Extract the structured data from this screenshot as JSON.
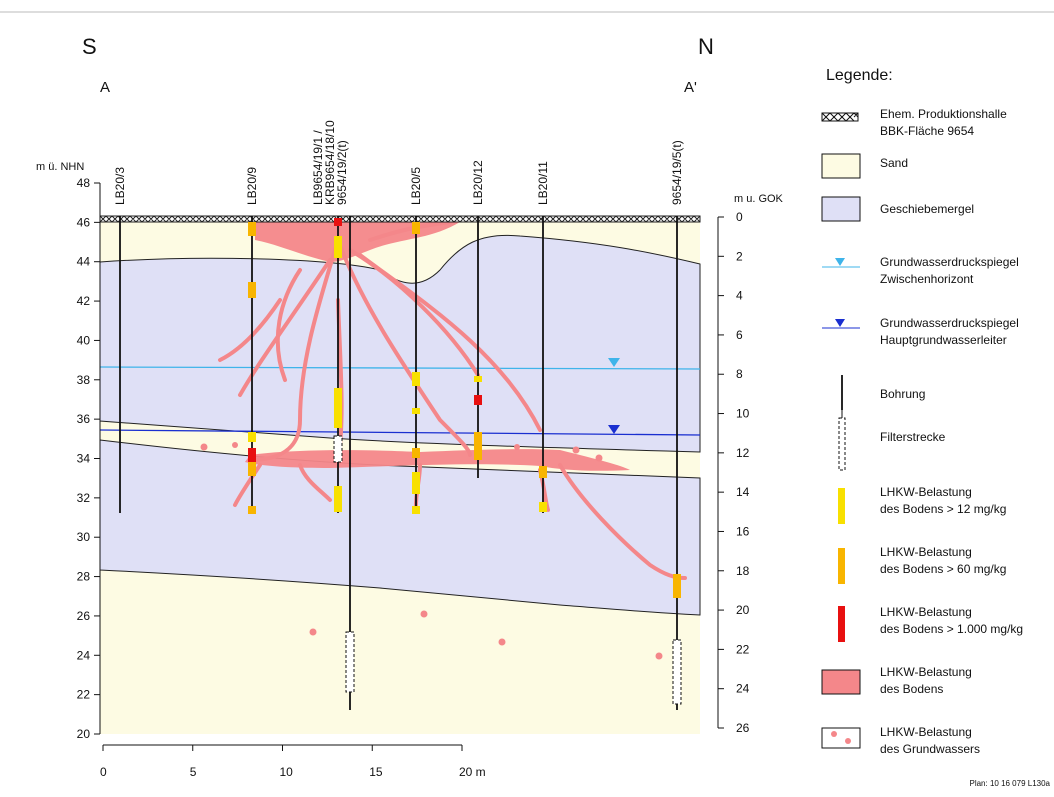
{
  "compass": {
    "left": "S",
    "right": "N"
  },
  "section": {
    "left": "A",
    "right": "A'"
  },
  "left_axis": {
    "title": "m ü. NHN",
    "ticks": [
      "48",
      "46",
      "44",
      "42",
      "40",
      "38",
      "36",
      "34",
      "32",
      "30",
      "28",
      "26",
      "24",
      "22",
      "20"
    ]
  },
  "right_axis": {
    "title": "m u. GOK",
    "ticks": [
      "0",
      "2",
      "4",
      "6",
      "8",
      "10",
      "12",
      "14",
      "16",
      "18",
      "20",
      "22",
      "24",
      "26"
    ]
  },
  "x_axis": {
    "ticks": [
      "0",
      "5",
      "10",
      "15",
      "20 m"
    ]
  },
  "boreholes": [
    {
      "lines": [
        "LB20/3"
      ]
    },
    {
      "lines": [
        "LB20/9"
      ]
    },
    {
      "lines": [
        "LB9654/19/1 /",
        "KRB9654/18/10",
        "9654/19/2(t)"
      ]
    },
    {
      "lines": [
        "LB20/5"
      ]
    },
    {
      "lines": [
        "LB20/12"
      ]
    },
    {
      "lines": [
        "LB20/11"
      ]
    },
    {
      "lines": [
        "9654/19/5(t)"
      ]
    }
  ],
  "legend": {
    "title": "Legende:",
    "items": [
      {
        "lines": [
          "Ehem. Produktionshalle",
          "BBK-Fläche 9654"
        ]
      },
      {
        "lines": [
          "Sand"
        ]
      },
      {
        "lines": [
          "Geschiebemergel"
        ]
      },
      {
        "lines": [
          "Grundwasserdruckspiegel",
          "Zwischenhorizont"
        ]
      },
      {
        "lines": [
          "Grundwasserdruckspiegel",
          "Hauptgrundwasserleiter"
        ]
      },
      {
        "lines": [
          "Bohrung"
        ]
      },
      {
        "lines": [
          "Filterstrecke"
        ]
      },
      {
        "lines": [
          "LHKW-Belastung",
          "des Bodens > 12 mg/kg"
        ]
      },
      {
        "lines": [
          "LHKW-Belastung",
          "des Bodens > 60 mg/kg"
        ]
      },
      {
        "lines": [
          "LHKW-Belastung",
          "des Bodens > 1.000 mg/kg"
        ]
      },
      {
        "lines": [
          "LHKW-Belastung",
          "des Bodens"
        ]
      },
      {
        "lines": [
          "LHKW-Belastung",
          "des Grundwassers"
        ]
      }
    ]
  },
  "footer": "Plan: 10 16 079 L130a"
}
